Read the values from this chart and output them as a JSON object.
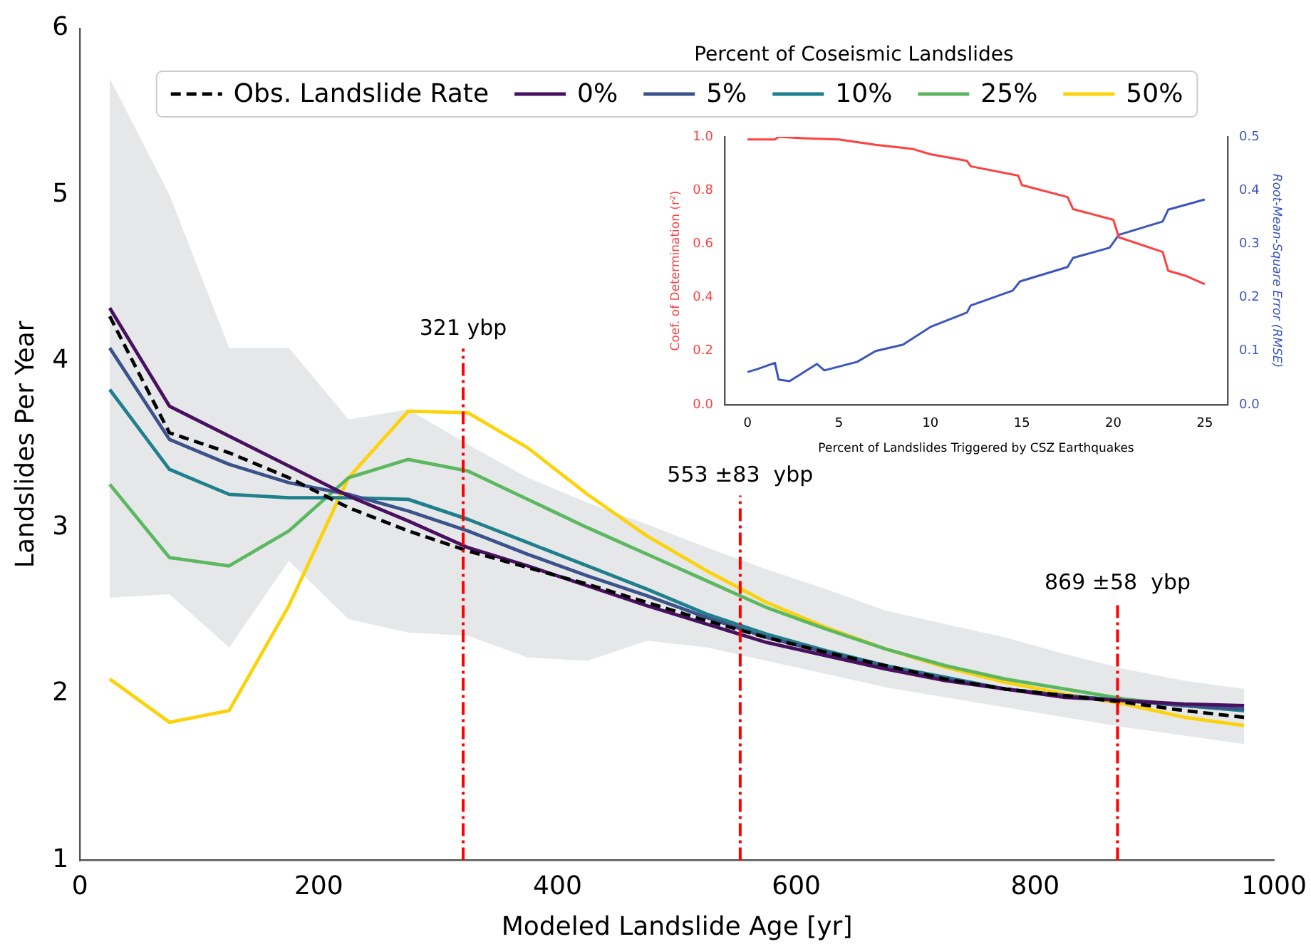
{
  "chart_data": [
    {
      "type": "line",
      "xlabel": "Modeled Landslide Age [yr]",
      "ylabel": "Landslides Per Year",
      "legend_title": "Percent of Coseismic Landslides",
      "legend": "top",
      "grid": false,
      "marker": "none",
      "x": [
        25,
        75,
        125,
        175,
        225,
        275,
        325,
        375,
        425,
        475,
        525,
        575,
        625,
        675,
        725,
        775,
        825,
        875,
        925,
        975
      ],
      "xlim": [
        0,
        1000
      ],
      "xticks": [
        0,
        200,
        400,
        600,
        800,
        1000
      ],
      "ylim": [
        1,
        6
      ],
      "yticks": [
        1,
        2,
        3,
        4,
        5,
        6
      ],
      "series": [
        {
          "name": "Obs. Landslide Rate",
          "color": "#000000",
          "line_style": "dashed",
          "values": [
            4.27,
            3.57,
            3.45,
            3.3,
            3.12,
            2.98,
            2.86,
            2.76,
            2.66,
            2.55,
            2.44,
            2.34,
            2.25,
            2.17,
            2.09,
            2.03,
            1.99,
            1.95,
            1.9,
            1.86
          ],
          "lower": [
            2.58,
            2.6,
            2.28,
            2.8,
            2.45,
            2.37,
            2.35,
            2.22,
            2.2,
            2.32,
            2.28,
            2.2,
            2.12,
            2.04,
            1.98,
            1.92,
            1.86,
            1.8,
            1.75,
            1.7
          ],
          "upper": [
            5.7,
            5.0,
            4.08,
            4.08,
            3.65,
            3.71,
            3.5,
            3.3,
            3.15,
            3.02,
            2.88,
            2.75,
            2.63,
            2.5,
            2.42,
            2.34,
            2.24,
            2.15,
            2.08,
            2.03
          ]
        },
        {
          "name": "0%",
          "color": "#4a1060",
          "line_style": "solid",
          "values": [
            4.32,
            3.73,
            3.55,
            3.37,
            3.19,
            3.04,
            2.88,
            2.77,
            2.65,
            2.53,
            2.42,
            2.31,
            2.23,
            2.15,
            2.08,
            2.03,
            1.98,
            1.96,
            1.94,
            1.93
          ]
        },
        {
          "name": "5%",
          "color": "#3b528b",
          "line_style": "solid",
          "values": [
            4.08,
            3.53,
            3.38,
            3.27,
            3.2,
            3.1,
            2.98,
            2.84,
            2.71,
            2.59,
            2.46,
            2.34,
            2.25,
            2.16,
            2.09,
            2.03,
            1.99,
            1.96,
            1.93,
            1.91
          ]
        },
        {
          "name": "10%",
          "color": "#1f7f8c",
          "line_style": "solid",
          "values": [
            3.83,
            3.35,
            3.2,
            3.18,
            3.18,
            3.17,
            3.05,
            2.91,
            2.77,
            2.63,
            2.48,
            2.36,
            2.26,
            2.17,
            2.1,
            2.03,
            1.99,
            1.96,
            1.93,
            1.9
          ]
        },
        {
          "name": "25%",
          "color": "#5cb860",
          "line_style": "solid",
          "values": [
            3.26,
            2.82,
            2.77,
            2.98,
            3.3,
            3.41,
            3.34,
            3.17,
            3.0,
            2.84,
            2.68,
            2.52,
            2.39,
            2.27,
            2.17,
            2.09,
            2.03,
            1.97,
            1.93,
            1.9
          ]
        },
        {
          "name": "50%",
          "color": "#fcd20a",
          "line_style": "solid",
          "values": [
            2.09,
            1.83,
            1.9,
            2.53,
            3.3,
            3.7,
            3.69,
            3.48,
            3.2,
            2.95,
            2.74,
            2.55,
            2.4,
            2.27,
            2.16,
            2.07,
            2.0,
            1.94,
            1.86,
            1.81
          ]
        }
      ],
      "ref_lines": [
        {
          "axis": "x",
          "value": 321,
          "label": "321 ybp",
          "color": "#ff0000",
          "line_style": "dashdot"
        },
        {
          "axis": "x",
          "value": 553,
          "label": "553 ±83  ybp",
          "color": "#ff0000",
          "line_style": "dashdot"
        },
        {
          "axis": "x",
          "value": 869,
          "label": "869 ±58  ybp",
          "color": "#ff0000",
          "line_style": "dashdot"
        }
      ]
    },
    {
      "type": "line",
      "xlabel": "Percent of Landslides Triggered by CSZ Earthquakes",
      "ylabel": "Coef. of Determination (r²)",
      "y2label": "Root-Mean-Square Error (RMSE)",
      "grid": false,
      "legend": false,
      "marker": "none",
      "xlim": [
        -1.25,
        26.25
      ],
      "xticks": [
        0,
        5,
        10,
        15,
        20,
        25
      ],
      "ylim": [
        0,
        1
      ],
      "yticks": [
        {
          "value": 0,
          "label": "0.0"
        },
        0.2,
        0.4,
        0.6,
        0.8,
        {
          "value": 1,
          "label": "1.0"
        }
      ],
      "y2lim": [
        0,
        0.5
      ],
      "y2ticks": [
        {
          "value": 0,
          "label": "0.0"
        },
        0.1,
        0.2,
        0.3,
        0.4,
        0.5
      ],
      "series": [
        {
          "color": "#ff4040",
          "x": [
            0,
            1.5,
            1.7,
            3,
            5,
            7,
            9,
            10,
            12,
            12.2,
            14.8,
            15,
            17.5,
            17.8,
            20,
            20.3,
            22.7,
            23,
            24,
            25
          ],
          "values": [
            0.99,
            0.99,
            1.0,
            0.995,
            0.99,
            0.97,
            0.955,
            0.935,
            0.91,
            0.89,
            0.855,
            0.82,
            0.775,
            0.73,
            0.69,
            0.625,
            0.57,
            0.5,
            0.48,
            0.45
          ]
        },
        {
          "color": "#3a55c0",
          "axis": "y2",
          "x": [
            0,
            0.5,
            1.5,
            1.7,
            2.3,
            3.8,
            4.2,
            6,
            7,
            8.5,
            10,
            12,
            12.2,
            14.5,
            14.9,
            17.5,
            17.8,
            19.8,
            20.3,
            22.7,
            23,
            25
          ],
          "values": [
            0.061,
            0.066,
            0.078,
            0.047,
            0.044,
            0.076,
            0.064,
            0.08,
            0.1,
            0.112,
            0.145,
            0.172,
            0.185,
            0.213,
            0.23,
            0.257,
            0.274,
            0.293,
            0.317,
            0.342,
            0.364,
            0.383
          ]
        }
      ]
    }
  ]
}
